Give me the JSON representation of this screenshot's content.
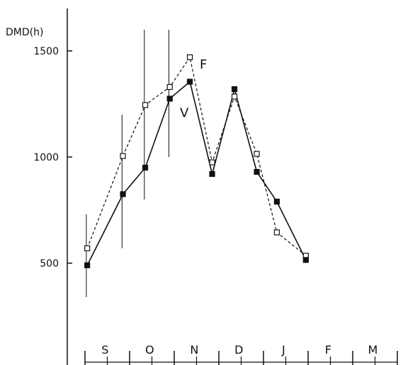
{
  "chart_data": {
    "type": "line",
    "ylabel": "DMD(h)",
    "yticks": [
      500,
      1000,
      1500
    ],
    "ylim": [
      0,
      1700
    ],
    "xlim": [
      0,
      8
    ],
    "month_labels": [
      "S",
      "O",
      "N",
      "D",
      "J",
      "F",
      "M"
    ],
    "grid": false,
    "legend": "inline labels near series",
    "series": [
      {
        "name": "F",
        "style": "dashed",
        "marker": "open-square",
        "x": [
          0.05,
          0.85,
          1.35,
          1.9,
          2.35,
          2.85,
          3.35,
          3.85,
          4.3,
          4.95
        ],
        "y": [
          570,
          1005,
          1245,
          1330,
          1470,
          975,
          1285,
          1015,
          645,
          535
        ]
      },
      {
        "name": "V",
        "style": "solid",
        "marker": "filled-square",
        "x": [
          0.05,
          0.85,
          1.35,
          1.9,
          2.35,
          2.85,
          3.35,
          3.85,
          4.3,
          4.95
        ],
        "y": [
          490,
          825,
          950,
          1275,
          1355,
          920,
          1320,
          930,
          790,
          515
        ]
      }
    ],
    "error_bars": [
      {
        "x": 0.03,
        "low": 340,
        "high": 730
      },
      {
        "x": 0.83,
        "low": 570,
        "high": 1200
      },
      {
        "x": 1.33,
        "low": 800,
        "high": 1600
      },
      {
        "x": 1.88,
        "low": 1000,
        "high": 1600
      }
    ]
  }
}
